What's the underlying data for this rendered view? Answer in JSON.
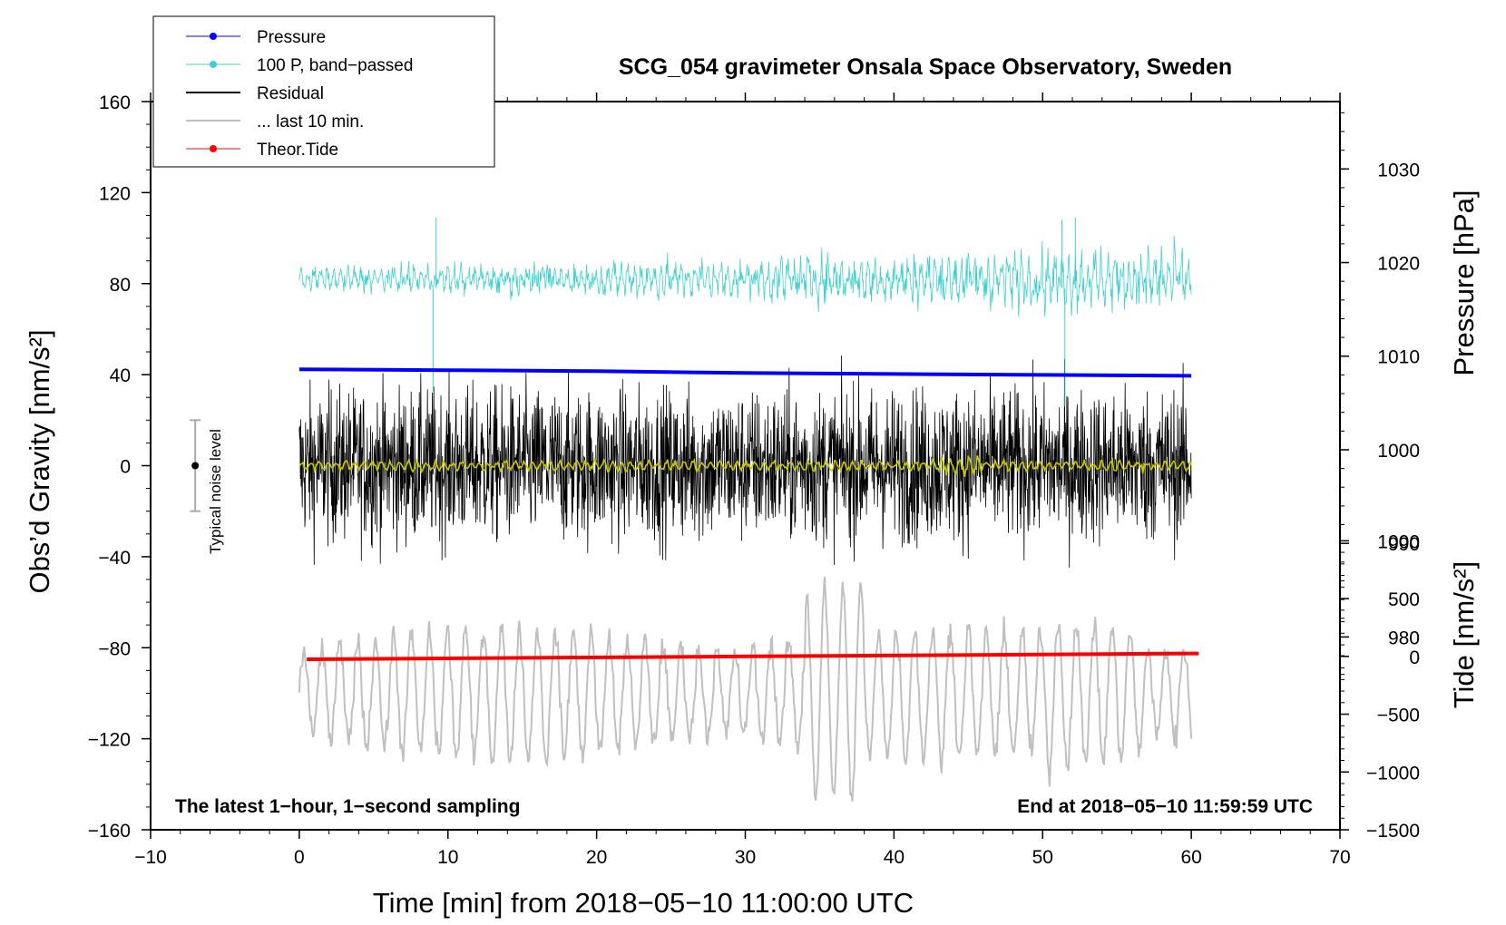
{
  "chart_data": {
    "type": "line",
    "title": "SCG_054 gravimeter Onsala Space Observatory, Sweden",
    "xlabel": "Time [min] from 2018−05−10 11:00:00 UTC",
    "ylabel_left": "Obs’d Gravity [nm/s²]",
    "ylabel_pressure": "Pressure [hPa]",
    "ylabel_tide": "Tide [nm/s²]",
    "xlim": [
      -10,
      70
    ],
    "ylim": [
      -160,
      160
    ],
    "pressure_lim": [
      959.4,
      1037.2
    ],
    "tide_lim": [
      -1500,
      4800
    ],
    "x_ticks": [
      -10,
      0,
      10,
      20,
      30,
      40,
      50,
      60,
      70
    ],
    "x_tick_labels": [
      "−10",
      "0",
      "10",
      "20",
      "30",
      "40",
      "50",
      "60",
      "70"
    ],
    "y_ticks": [
      -160,
      -120,
      -80,
      -40,
      0,
      40,
      80,
      120,
      160
    ],
    "y_tick_labels": [
      "−160",
      "−120",
      "−80",
      "−40",
      "0",
      "40",
      "80",
      "120",
      "160"
    ],
    "pressure_ticks": [
      980,
      990,
      1000,
      1010,
      1020,
      1030
    ],
    "pressure_tick_labels": [
      "980",
      "990",
      "1000",
      "1010",
      "1020",
      "1030"
    ],
    "tide_ticks": [
      -1500,
      -1000,
      -500,
      0,
      500,
      1000
    ],
    "tide_tick_labels": [
      "−1500",
      "−1000",
      "−500",
      "0",
      "500",
      "1000"
    ],
    "annotations": {
      "bottom_left": "The latest 1−hour, 1−second sampling",
      "bottom_right": "End at 2018−05−10 11:59:59 UTC",
      "noise_label": "Typical noise level"
    },
    "noise_bar": {
      "x": -7,
      "center": 0,
      "low": -20,
      "high": 20
    },
    "legend": {
      "position": "top-left",
      "entries": [
        {
          "label": "Pressure",
          "color": "#0000ff",
          "marker": true
        },
        {
          "label": "100 P, band−passed",
          "color": "#40d0d0",
          "marker": true
        },
        {
          "label": "Residual",
          "color": "#000000",
          "marker": false
        },
        {
          "label": "... last 10 min.",
          "color": "#c0c0c0",
          "marker": false
        },
        {
          "label": "Theor.Tide",
          "color": "#ff0000",
          "marker": true
        }
      ]
    },
    "series": [
      {
        "name": "Pressure",
        "axis": "pressure",
        "color": "#0000ff",
        "x_range": [
          0,
          60
        ],
        "values": [
          1008.6,
          1008.5,
          1008.4,
          1008.2,
          1008.1,
          1008.0,
          1007.9
        ]
      },
      {
        "name": "100 P, band−passed",
        "axis": "left",
        "color": "#40d0d0",
        "x_range": [
          0,
          60
        ],
        "baseline": 78,
        "amplitude": 12,
        "spikes": [
          [
            9.2,
            109
          ],
          [
            9.0,
            33
          ],
          [
            51.3,
            108
          ],
          [
            52.2,
            109
          ],
          [
            51.5,
            26
          ]
        ]
      },
      {
        "name": "Residual",
        "axis": "left",
        "color": "#000000",
        "x_range": [
          0,
          60
        ],
        "baseline": 0,
        "amplitude": 40,
        "range": [
          -52,
          50
        ]
      },
      {
        "name": "Residual smoothed",
        "axis": "left",
        "color": "#c8c800",
        "x_range": [
          0,
          60
        ],
        "baseline": 0,
        "amplitude": 3
      },
      {
        "name": "... last 10 min.",
        "axis": "left",
        "color": "#c0c0c0",
        "x_range": [
          0,
          60
        ],
        "baseline": -100,
        "amplitude": 22,
        "range": [
          -150,
          -47
        ]
      },
      {
        "name": "Theor.Tide",
        "axis": "tide",
        "color": "#ff0000",
        "x_range": [
          0.5,
          60.5
        ],
        "values": [
          -25,
          0,
          25
        ]
      }
    ]
  },
  "colors": {
    "pressure": "#0000ff",
    "band_passed": "#40d0d0",
    "residual": "#000000",
    "smoothed": "#c8c800",
    "last10": "#c0c0c0",
    "tide": "#ff0000",
    "noise_bar": "#aaaaaa"
  }
}
